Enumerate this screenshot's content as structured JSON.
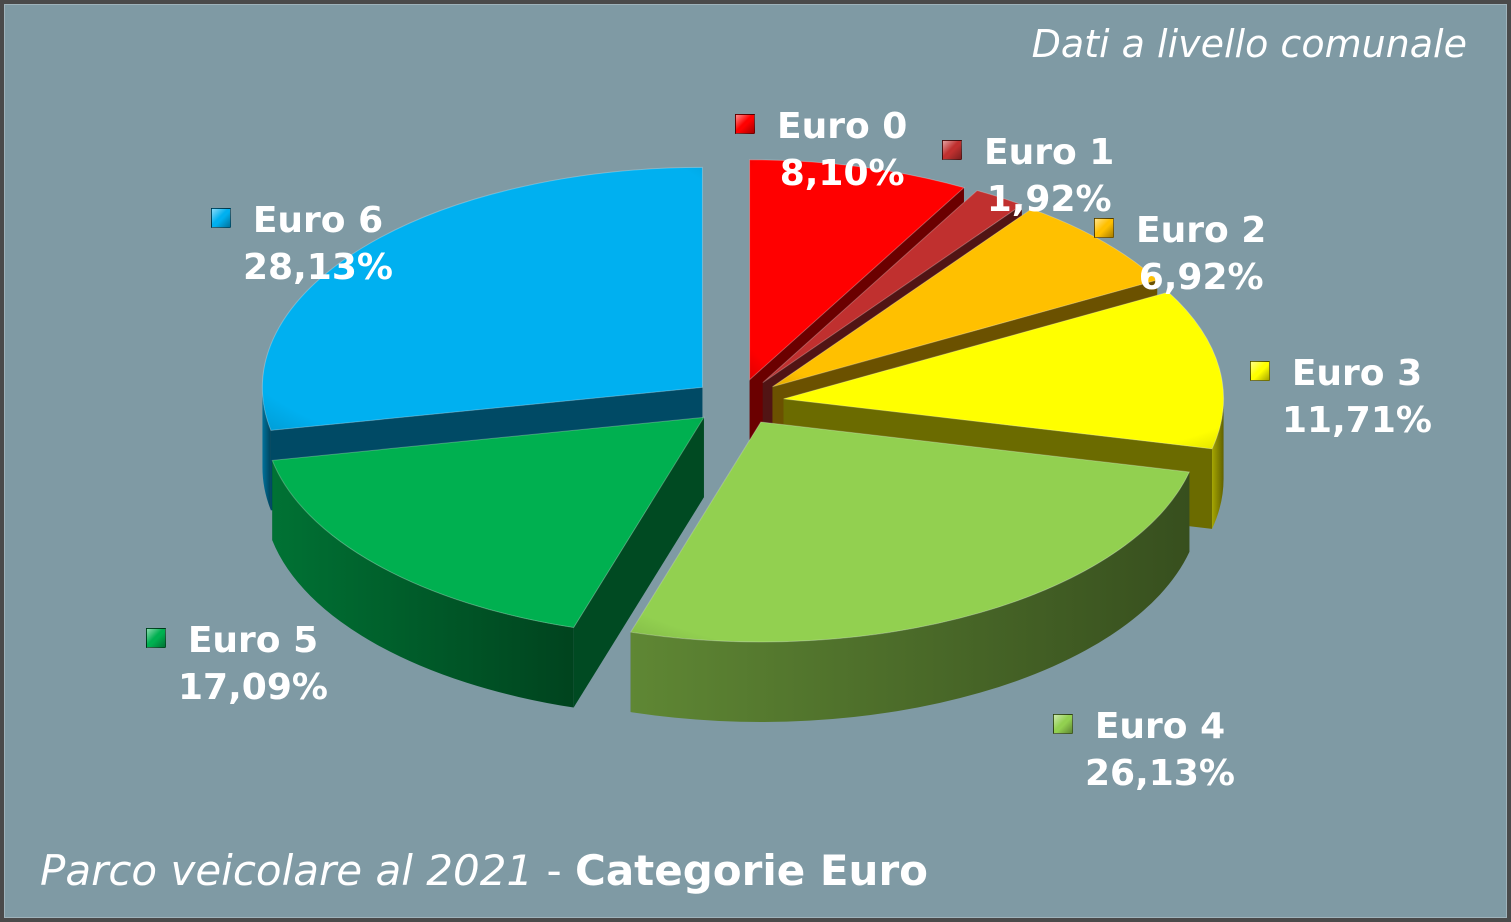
{
  "subtitle": "Dati a livello comunale",
  "title": {
    "main": "Parco veicolare al 2021",
    "separator": " - ",
    "emphasis": "Categorie Euro"
  },
  "chart_data": {
    "type": "pie",
    "style": "3d-exploded",
    "title": "Parco veicolare al 2021 - Categorie Euro",
    "subtitle": "Dati a livello comunale",
    "slices": [
      {
        "name": "Euro 0",
        "value": 8.1,
        "value_label": "8,10%",
        "color": "#ff0000"
      },
      {
        "name": "Euro 1",
        "value": 1.92,
        "value_label": "1,92%",
        "color": "#c0302f"
      },
      {
        "name": "Euro 2",
        "value": 6.92,
        "value_label": "6,92%",
        "color": "#ffc000"
      },
      {
        "name": "Euro 3",
        "value": 11.71,
        "value_label": "11,71%",
        "color": "#ffff00"
      },
      {
        "name": "Euro 4",
        "value": 26.13,
        "value_label": "26,13%",
        "color": "#92d050"
      },
      {
        "name": "Euro 5",
        "value": 17.09,
        "value_label": "17,09%",
        "color": "#00b050"
      },
      {
        "name": "Euro 6",
        "value": 28.13,
        "value_label": "28,13%",
        "color": "#00b0f0"
      }
    ]
  }
}
